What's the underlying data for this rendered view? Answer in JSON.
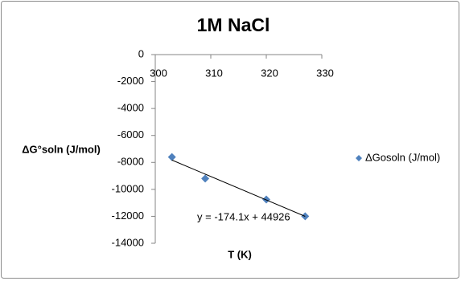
{
  "chart_data": {
    "type": "scatter",
    "title": "1M NaCl",
    "x_label": "T (K)",
    "y_label": "ΔG°soln (J/mol)",
    "series": [
      {
        "name": "ΔGosoln (J/mol)",
        "color": "#4f81bd",
        "x": [
          303,
          309,
          320,
          327
        ],
        "values": [
          -7600,
          -9200,
          -10750,
          -12000
        ]
      }
    ],
    "trendline": {
      "slope": -174.1,
      "intercept": 44926,
      "label": "y = -174.1x + 44926",
      "color": "#000000"
    },
    "xlim": [
      300,
      330
    ],
    "xticks": [
      300,
      310,
      320,
      330
    ],
    "ylim": [
      -14000,
      0
    ],
    "yticks": [
      0,
      -2000,
      -4000,
      -6000,
      -8000,
      -10000,
      -12000,
      -14000
    ],
    "grid": false,
    "legend": "right"
  }
}
